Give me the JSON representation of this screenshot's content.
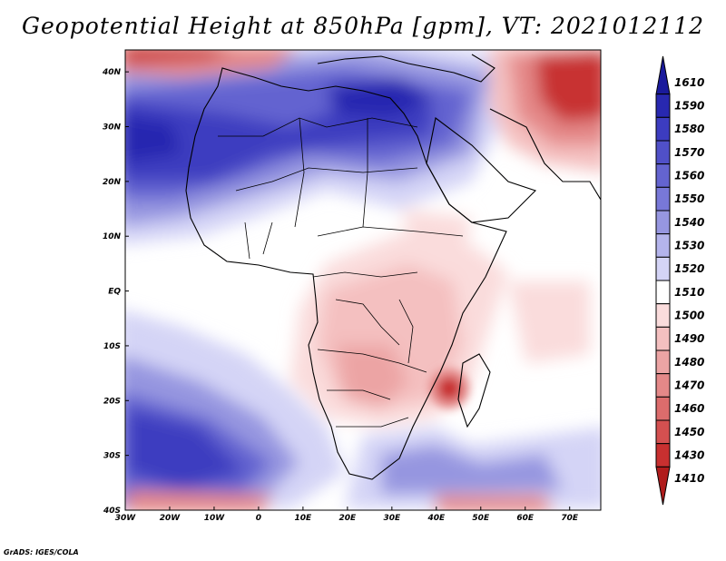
{
  "title": "Geopotential Height at 850hPa [gpm], VT: 2021012112",
  "footer": "GrADS: IGES/COLA",
  "axes": {
    "lat_labels": [
      "40N",
      "30N",
      "20N",
      "10N",
      "EQ",
      "10S",
      "20S",
      "30S",
      "40S"
    ],
    "lat_values": [
      40,
      30,
      20,
      10,
      0,
      -10,
      -20,
      -30,
      -40
    ],
    "lon_labels": [
      "30W",
      "20W",
      "10W",
      "0",
      "10E",
      "20E",
      "30E",
      "40E",
      "50E",
      "60E",
      "70E"
    ],
    "lon_values": [
      -30,
      -20,
      -10,
      0,
      10,
      20,
      30,
      40,
      50,
      60,
      70
    ],
    "lon_range": [
      -30,
      77
    ],
    "lat_range": [
      -40,
      44
    ]
  },
  "colorbar": {
    "levels": [
      "1610",
      "1590",
      "1580",
      "1570",
      "1560",
      "1550",
      "1540",
      "1530",
      "1520",
      "1510",
      "1500",
      "1490",
      "1480",
      "1470",
      "1460",
      "1450",
      "1430",
      "1410"
    ],
    "colors": [
      "#1a1a9c",
      "#2828b0",
      "#3c3cc0",
      "#5050c8",
      "#6464d0",
      "#7878d8",
      "#9696e0",
      "#b4b4ec",
      "#d4d4f6",
      "#ffffff",
      "#fadcdc",
      "#f4c0c0",
      "#eca4a4",
      "#e48888",
      "#dc6c6c",
      "#d45050",
      "#c83030",
      "#b01c1c"
    ]
  }
}
